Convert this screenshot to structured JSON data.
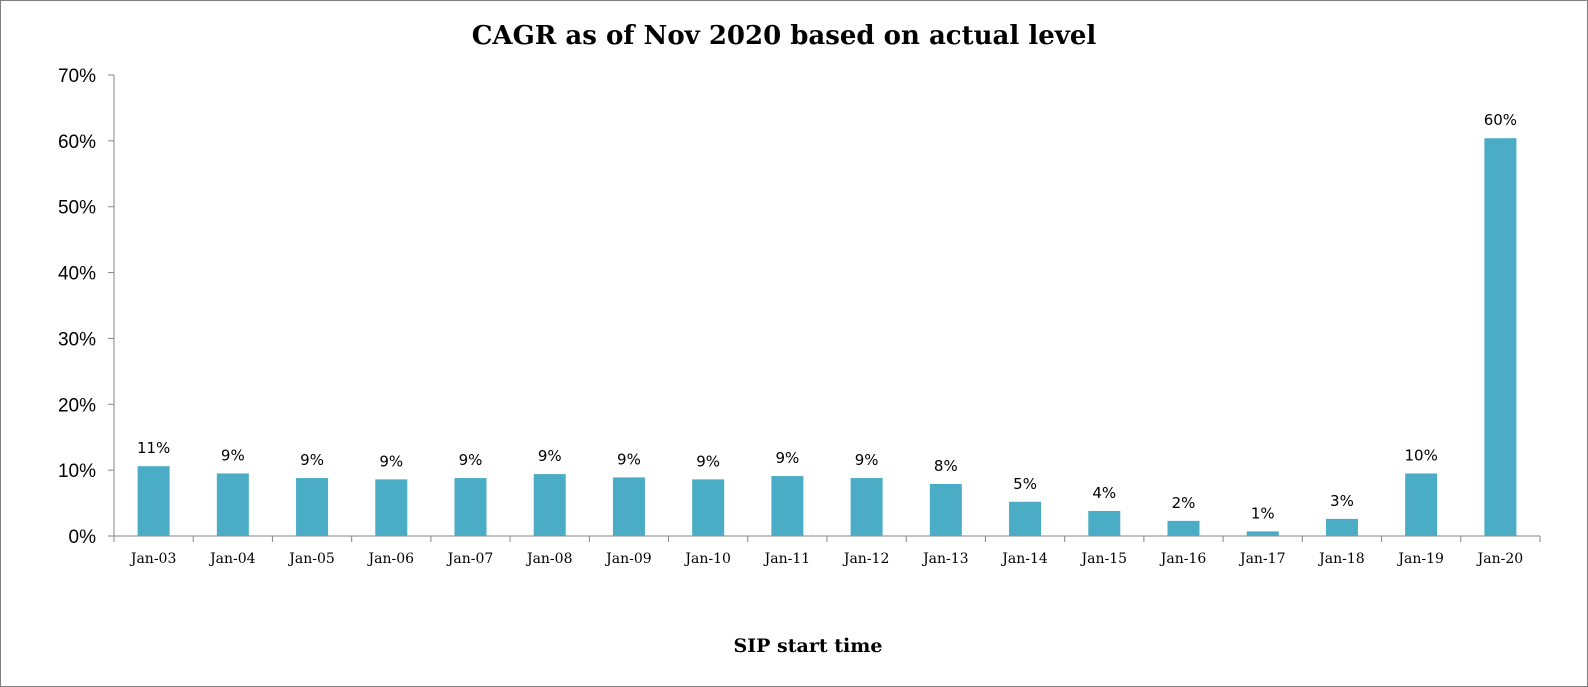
{
  "chart_data": {
    "type": "bar",
    "title": "CAGR as of Nov 2020 based on actual level",
    "xlabel": "SIP start time",
    "ylabel": "",
    "ylim": [
      0,
      70
    ],
    "yticks": [
      "0%",
      "10%",
      "20%",
      "30%",
      "40%",
      "50%",
      "60%",
      "70%"
    ],
    "grid": false,
    "bar_color": "#4BACC6",
    "categories": [
      "Jan-03",
      "Jan-04",
      "Jan-05",
      "Jan-06",
      "Jan-07",
      "Jan-08",
      "Jan-09",
      "Jan-10",
      "Jan-11",
      "Jan-12",
      "Jan-13",
      "Jan-14",
      "Jan-15",
      "Jan-16",
      "Jan-17",
      "Jan-18",
      "Jan-19",
      "Jan-20"
    ],
    "values": [
      10.6,
      9.5,
      8.8,
      8.6,
      8.8,
      9.4,
      8.9,
      8.6,
      9.1,
      8.8,
      7.9,
      5.2,
      3.8,
      2.3,
      0.7,
      2.6,
      9.5,
      60.4
    ],
    "labels": [
      "11%",
      "9%",
      "9%",
      "9%",
      "9%",
      "9%",
      "9%",
      "9%",
      "9%",
      "9%",
      "8%",
      "5%",
      "4%",
      "2%",
      "1%",
      "3%",
      "10%",
      "60%"
    ]
  }
}
